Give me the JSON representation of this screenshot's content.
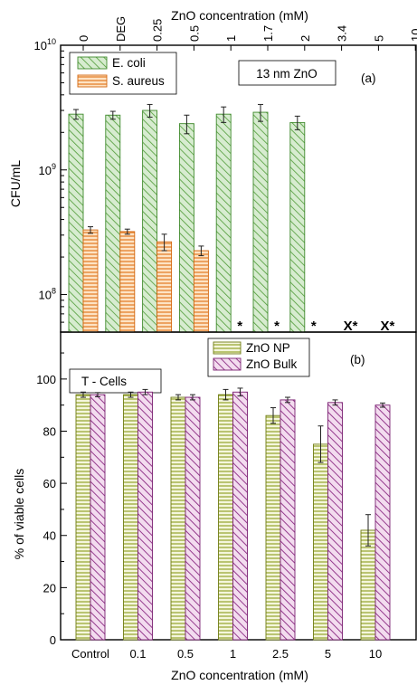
{
  "chart_data": [
    {
      "type": "bar",
      "panel_label": "(a)",
      "annotation": "13 nm ZnO",
      "xlabel": "ZnO concentration (mM)",
      "ylabel": "CFU/mL",
      "yscale": "log",
      "ylim": [
        50000000,
        10000000000
      ],
      "y_ticks": [
        {
          "value": 100000000,
          "base": "10",
          "exp": "8"
        },
        {
          "value": 1000000000,
          "base": "10",
          "exp": "9"
        },
        {
          "value": 10000000000,
          "base": "10",
          "exp": "10"
        }
      ],
      "categories": [
        "0",
        "DEG",
        "0.25",
        "0.5",
        "1",
        "1.7",
        "2",
        "3.4",
        "5",
        "10"
      ],
      "legend_position": "top-left",
      "series": [
        {
          "name": "E. coli",
          "color": "#5aa53f",
          "fill": "#d7ecd0",
          "pattern": "diagonal",
          "values": [
            2800000000,
            2750000000,
            3000000000,
            2350000000,
            2800000000,
            2900000000,
            2400000000,
            null,
            null,
            null
          ],
          "errors": [
            250000000,
            200000000,
            350000000,
            400000000,
            400000000,
            450000000,
            300000000,
            null,
            null,
            null
          ]
        },
        {
          "name": "S. aureus",
          "color": "#e67a1e",
          "fill": "#fde3c4",
          "pattern": "horizontal",
          "values": [
            330000000,
            320000000,
            265000000,
            225000000,
            null,
            null,
            null,
            null,
            null,
            null
          ],
          "errors": [
            20000000,
            15000000,
            40000000,
            20000000,
            null,
            null,
            null,
            null,
            null,
            null
          ]
        }
      ],
      "markers": [
        {
          "category": "1",
          "text": "*"
        },
        {
          "category": "1.7",
          "text": "*"
        },
        {
          "category": "2",
          "text": "*"
        },
        {
          "category": "3.4",
          "text": "X*"
        },
        {
          "category": "5",
          "text": "X*"
        },
        {
          "category": "10",
          "text": "X*"
        }
      ]
    },
    {
      "type": "bar",
      "panel_label": "(b)",
      "annotation": "T -  Cells",
      "xlabel": "ZnO concentration (mM)",
      "ylabel": "% of viable cells",
      "ylim": [
        0,
        118
      ],
      "y_ticks": [
        0,
        20,
        40,
        60,
        80,
        100
      ],
      "categories": [
        "Control",
        "0.1",
        "0.5",
        "1",
        "2.5",
        "5",
        "10"
      ],
      "legend_position": "top-center",
      "series": [
        {
          "name": "ZnO NP",
          "color": "#8b9a1a",
          "fill": "#f4f6dc",
          "pattern": "horizontal",
          "values": [
            94,
            94,
            93,
            94,
            86,
            75,
            42
          ],
          "errors": [
            1,
            1,
            1,
            2,
            3,
            7,
            6
          ]
        },
        {
          "name": "ZnO Bulk",
          "color": "#8b2a83",
          "fill": "#f3dcef",
          "pattern": "diagonal",
          "values": [
            94,
            95,
            93,
            95,
            92,
            91,
            90
          ],
          "errors": [
            0.8,
            1,
            1,
            1.5,
            1,
            1,
            0.8
          ]
        }
      ]
    }
  ]
}
